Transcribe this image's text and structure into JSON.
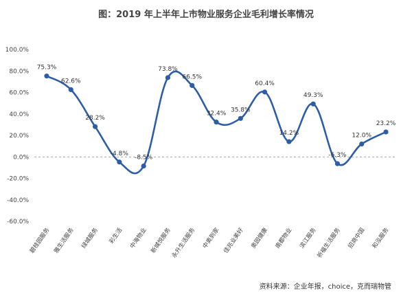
{
  "title": "图：2019 年上半年上市物业服务企业毛利增长率情况",
  "source": "资料来源：企业年报，choice，克而瑞物管",
  "chart_data": {
    "type": "line",
    "categories": [
      "碧桂园服务",
      "雅生活服务",
      "绿城服务",
      "彩生活",
      "中海物业",
      "新城悦服务",
      "永升生活服务",
      "中奥到家",
      "佳兆业美好",
      "奥园健康",
      "南都物业",
      "滨江服务",
      "祈福生活服务",
      "招商中国",
      "和泓服务"
    ],
    "values": [
      75.3,
      62.6,
      28.2,
      -4.8,
      -8.5,
      73.8,
      66.5,
      32.4,
      35.8,
      60.4,
      14.2,
      49.3,
      -6.3,
      12.0,
      23.2
    ],
    "value_labels": [
      "75.3%",
      "62.6%",
      "28.2%",
      "-4.8%",
      "-8.5%",
      "73.8%",
      "66.5%",
      "32.4%",
      "35.8%",
      "60.4%",
      "14.2%",
      "49.3%",
      "-6.3%",
      "12.0%",
      "23.2%"
    ],
    "y_ticks": [
      "100.0%",
      "80.0%",
      "60.0%",
      "40.0%",
      "20.0%",
      "0.0%",
      "-20.0%",
      "-40.0%",
      "-60.0%"
    ],
    "ylim": [
      -60,
      100
    ],
    "y_tick_step": 20,
    "zero_line": "dashed",
    "grid": false,
    "series_color": "#2e5da8"
  }
}
